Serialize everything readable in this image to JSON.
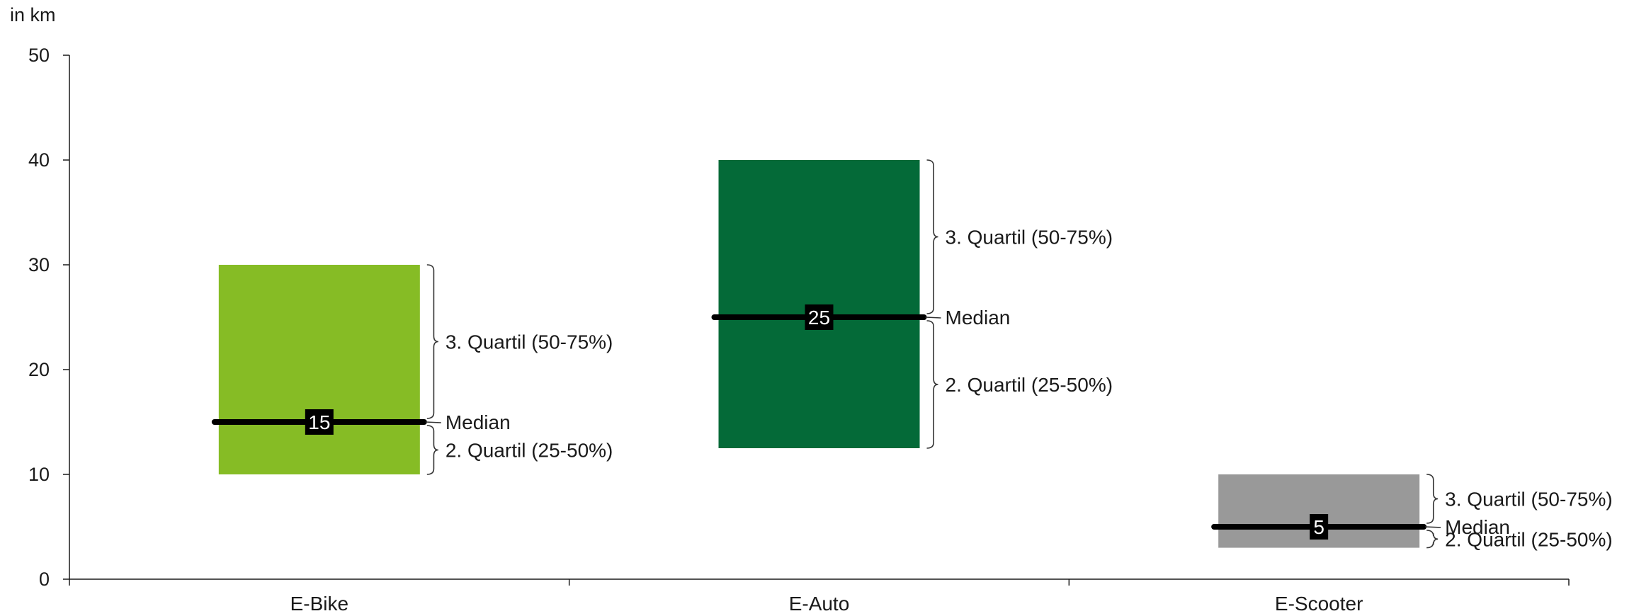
{
  "chart_data": {
    "type": "box",
    "title": "",
    "ylabel": "in km",
    "ylim": [
      0,
      50
    ],
    "yticks": [
      0,
      10,
      20,
      30,
      40,
      50
    ],
    "categories": [
      "E-Bike",
      "E-Auto",
      "E-Scooter"
    ],
    "boxes": [
      {
        "category": "E-Bike",
        "q1": 10,
        "median": 15,
        "q3": 30,
        "median_label": "15",
        "color": "#86bc25"
      },
      {
        "category": "E-Auto",
        "q1": 12.5,
        "median": 25,
        "q3": 40,
        "median_label": "25",
        "color": "#046a38"
      },
      {
        "category": "E-Scooter",
        "q1": 3,
        "median": 5,
        "q3": 10,
        "median_label": "5",
        "color": "#999999"
      }
    ],
    "annotations": {
      "q3": "3. Quartil (50-75%)",
      "median": "Median",
      "q2": "2. Quartil (25-50%)"
    }
  }
}
